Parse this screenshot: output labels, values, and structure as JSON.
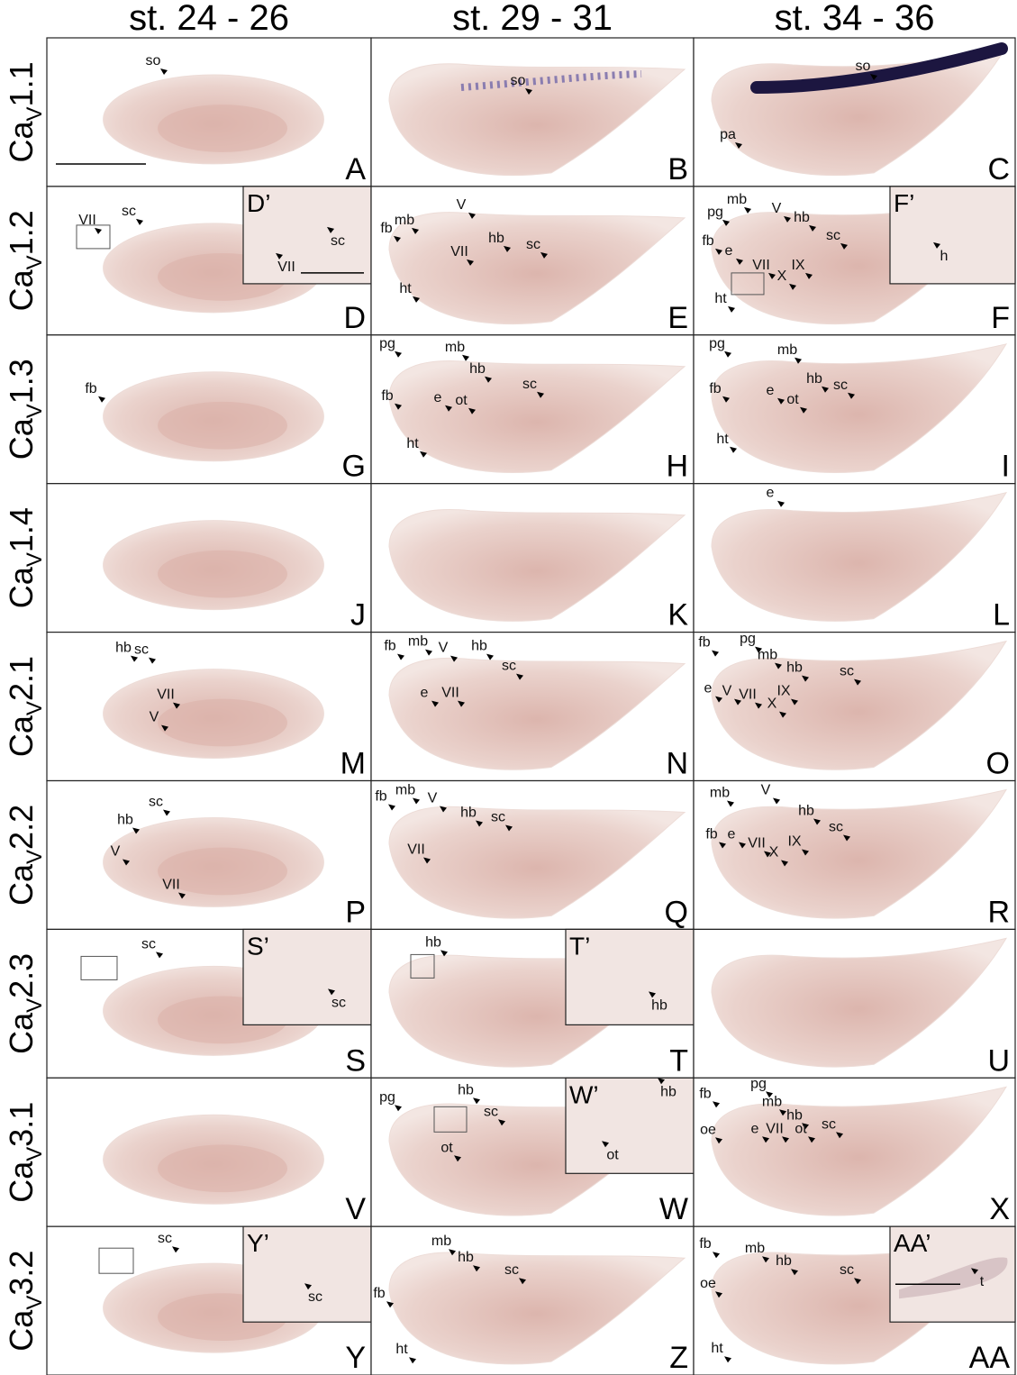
{
  "column_headers": [
    "st. 24 - 26",
    "st. 29 - 31",
    "st. 34 - 36"
  ],
  "rows": [
    {
      "label": {
        "prefix": "Ca",
        "sub": "V",
        "suffix": "1.1"
      },
      "panels": [
        {
          "letter": "A",
          "labels": [
            "so"
          ]
        },
        {
          "letter": "B",
          "labels": [
            "so"
          ]
        },
        {
          "letter": "C",
          "labels": [
            "so",
            "pa"
          ]
        }
      ]
    },
    {
      "label": {
        "prefix": "Ca",
        "sub": "V",
        "suffix": "1.2"
      },
      "panels": [
        {
          "letter": "D",
          "labels": [
            "VII",
            "sc"
          ],
          "inset": {
            "letter": "D’",
            "labels": [
              "VII",
              "sc"
            ]
          }
        },
        {
          "letter": "E",
          "labels": [
            "mb",
            "fb",
            "V",
            "VII",
            "hb",
            "sc",
            "ht"
          ]
        },
        {
          "letter": "F",
          "labels": [
            "pg",
            "mb",
            "V",
            "hb",
            "fb",
            "sc",
            "e",
            "VII",
            "IX",
            "X",
            "ht"
          ],
          "inset": {
            "letter": "F’",
            "labels": [
              "h"
            ]
          }
        }
      ]
    },
    {
      "label": {
        "prefix": "Ca",
        "sub": "V",
        "suffix": "1.3"
      },
      "panels": [
        {
          "letter": "G",
          "labels": [
            "fb"
          ]
        },
        {
          "letter": "H",
          "labels": [
            "pg",
            "mb",
            "hb",
            "sc",
            "fb",
            "e",
            "ot",
            "ht"
          ]
        },
        {
          "letter": "I",
          "labels": [
            "pg",
            "mb",
            "hb",
            "sc",
            "fb",
            "e",
            "ot",
            "ht"
          ]
        }
      ]
    },
    {
      "label": {
        "prefix": "Ca",
        "sub": "V",
        "suffix": "1.4"
      },
      "panels": [
        {
          "letter": "J",
          "labels": []
        },
        {
          "letter": "K",
          "labels": []
        },
        {
          "letter": "L",
          "labels": [
            "e"
          ]
        }
      ]
    },
    {
      "label": {
        "prefix": "Ca",
        "sub": "V",
        "suffix": "2.1"
      },
      "panels": [
        {
          "letter": "M",
          "labels": [
            "hb",
            "sc",
            "VII",
            "V"
          ]
        },
        {
          "letter": "N",
          "labels": [
            "fb",
            "mb",
            "V",
            "hb",
            "e",
            "VII",
            "sc"
          ]
        },
        {
          "letter": "O",
          "labels": [
            "fb",
            "pg",
            "mb",
            "hb",
            "sc",
            "e",
            "V",
            "VII",
            "IX",
            "X"
          ]
        }
      ]
    },
    {
      "label": {
        "prefix": "Ca",
        "sub": "V",
        "suffix": "2.2"
      },
      "panels": [
        {
          "letter": "P",
          "labels": [
            "sc",
            "hb",
            "V",
            "VII"
          ]
        },
        {
          "letter": "Q",
          "labels": [
            "fb",
            "mb",
            "V",
            "hb",
            "sc",
            "VII"
          ]
        },
        {
          "letter": "R",
          "labels": [
            "mb",
            "V",
            "hb",
            "sc",
            "fb",
            "e",
            "VII",
            "IX",
            "X"
          ]
        }
      ]
    },
    {
      "label": {
        "prefix": "Ca",
        "sub": "V",
        "suffix": "2.3"
      },
      "panels": [
        {
          "letter": "S",
          "labels": [
            "sc"
          ],
          "inset": {
            "letter": "S’",
            "labels": [
              "sc"
            ]
          }
        },
        {
          "letter": "T",
          "labels": [
            "hb"
          ],
          "inset": {
            "letter": "T’",
            "labels": [
              "hb"
            ]
          }
        },
        {
          "letter": "U",
          "labels": []
        }
      ]
    },
    {
      "label": {
        "prefix": "Ca",
        "sub": "V",
        "suffix": "3.1"
      },
      "panels": [
        {
          "letter": "V",
          "labels": []
        },
        {
          "letter": "W",
          "labels": [
            "pg",
            "hb",
            "sc",
            "ot"
          ],
          "inset": {
            "letter": "W’",
            "labels": [
              "hb",
              "ot"
            ]
          }
        },
        {
          "letter": "X",
          "labels": [
            "fb",
            "pg",
            "mb",
            "hb",
            "sc",
            "oe",
            "e",
            "VII",
            "ot"
          ]
        }
      ]
    },
    {
      "label": {
        "prefix": "Ca",
        "sub": "V",
        "suffix": "3.2"
      },
      "panels": [
        {
          "letter": "Y",
          "labels": [
            "sc"
          ],
          "inset": {
            "letter": "Y’",
            "labels": [
              "sc"
            ]
          }
        },
        {
          "letter": "Z",
          "labels": [
            "mb",
            "hb",
            "sc",
            "fb",
            "ht"
          ]
        },
        {
          "letter": "AA",
          "labels": [
            "fb",
            "mb",
            "hb",
            "sc",
            "oe",
            "ht"
          ],
          "inset": {
            "letter": "AA’",
            "labels": [
              "t"
            ]
          }
        }
      ]
    }
  ]
}
